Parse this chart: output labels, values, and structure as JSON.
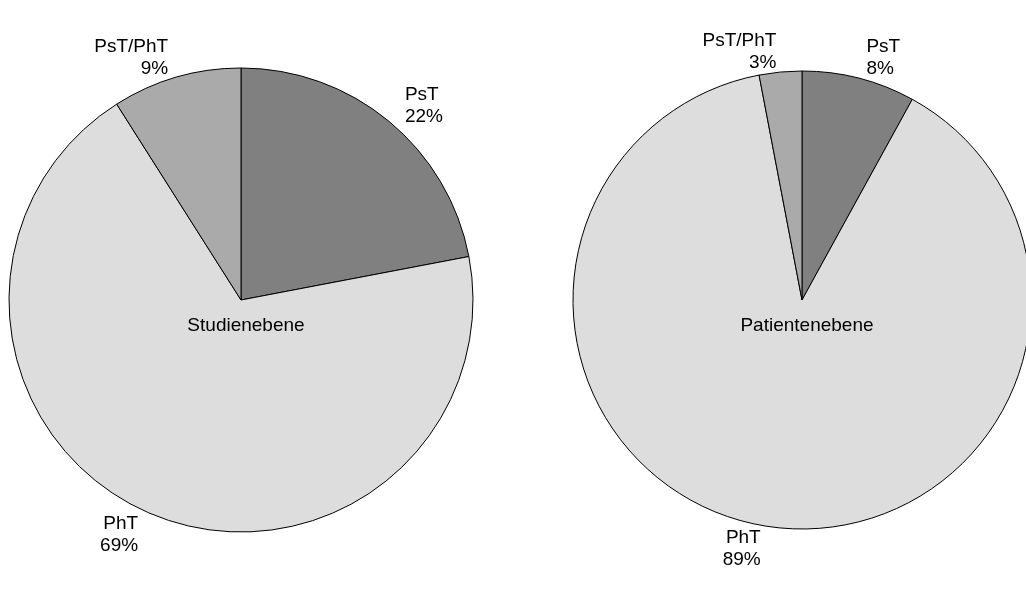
{
  "chart_data": [
    {
      "type": "pie",
      "title": "Studienebene",
      "categories": [
        "PsT",
        "PhT",
        "PsT/PhT"
      ],
      "values": [
        22,
        69,
        9
      ],
      "colors": [
        "#808080",
        "#dddddd",
        "#aaaaaa"
      ],
      "value_labels": [
        "22%",
        "69%",
        "9%"
      ],
      "legend": false
    },
    {
      "type": "pie",
      "title": "Patientenebene",
      "categories": [
        "PsT",
        "PhT",
        "PsT/PhT"
      ],
      "values": [
        8,
        89,
        3
      ],
      "colors": [
        "#808080",
        "#dddddd",
        "#aaaaaa"
      ],
      "value_labels": [
        "8%",
        "89%",
        "3%"
      ],
      "legend": false
    }
  ]
}
